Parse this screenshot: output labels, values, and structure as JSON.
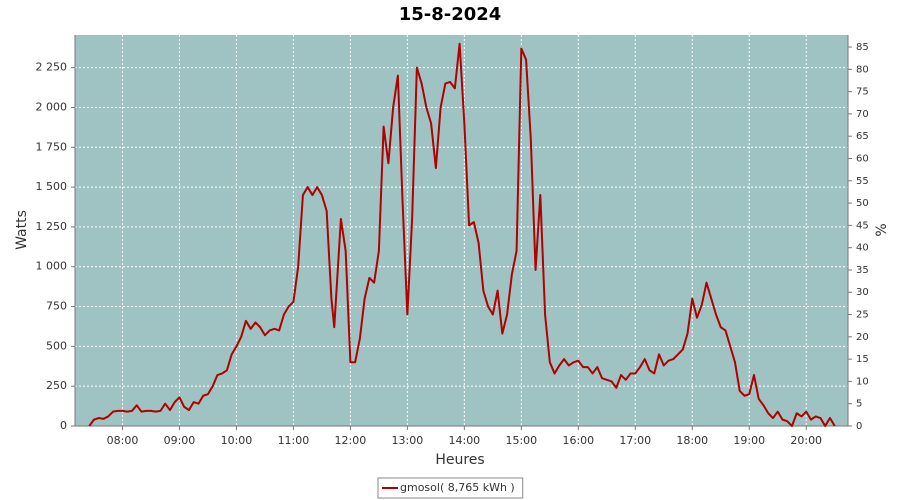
{
  "chart_data": {
    "type": "line",
    "title": "15-8-2024",
    "xlabel": "Heures",
    "ylabel": "Watts",
    "y2label": "%",
    "x": [
      "07:25",
      "07:30",
      "07:35",
      "07:40",
      "07:45",
      "07:50",
      "07:55",
      "08:00",
      "08:05",
      "08:10",
      "08:15",
      "08:20",
      "08:25",
      "08:30",
      "08:35",
      "08:40",
      "08:45",
      "08:50",
      "08:55",
      "09:00",
      "09:05",
      "09:10",
      "09:15",
      "09:20",
      "09:25",
      "09:30",
      "09:35",
      "09:40",
      "09:45",
      "09:50",
      "09:55",
      "10:00",
      "10:05",
      "10:10",
      "10:15",
      "10:20",
      "10:25",
      "10:30",
      "10:35",
      "10:40",
      "10:45",
      "10:50",
      "10:55",
      "11:00",
      "11:05",
      "11:10",
      "11:15",
      "11:20",
      "11:25",
      "11:30",
      "11:35",
      "11:40",
      "11:43",
      "11:50",
      "11:55",
      "12:00",
      "12:05",
      "12:10",
      "12:15",
      "12:20",
      "12:25",
      "12:30",
      "12:35",
      "12:40",
      "12:45",
      "12:50",
      "12:55",
      "13:00",
      "13:05",
      "13:10",
      "13:15",
      "13:20",
      "13:25",
      "13:30",
      "13:35",
      "13:40",
      "13:45",
      "13:50",
      "13:55",
      "14:00",
      "14:05",
      "14:10",
      "14:15",
      "14:20",
      "14:25",
      "14:30",
      "14:35",
      "14:40",
      "14:45",
      "14:50",
      "14:55",
      "15:00",
      "15:05",
      "15:10",
      "15:15",
      "15:20",
      "15:25",
      "15:30",
      "15:35",
      "15:40",
      "15:45",
      "15:50",
      "15:55",
      "16:00",
      "16:05",
      "16:10",
      "16:15",
      "16:20",
      "16:25",
      "16:30",
      "16:35",
      "16:40",
      "16:45",
      "16:50",
      "16:55",
      "17:00",
      "17:05",
      "17:10",
      "17:15",
      "17:20",
      "17:25",
      "17:30",
      "17:35",
      "17:40",
      "17:45",
      "17:50",
      "17:55",
      "18:00",
      "18:05",
      "18:10",
      "18:15",
      "18:20",
      "18:25",
      "18:30",
      "18:35",
      "18:40",
      "18:45",
      "18:50",
      "18:55",
      "19:00",
      "19:05",
      "19:10",
      "19:15",
      "19:20",
      "19:25",
      "19:30",
      "19:35",
      "19:40",
      "19:45",
      "19:50",
      "19:55",
      "20:00",
      "20:05",
      "20:10",
      "20:15",
      "20:20",
      "20:25",
      "20:30"
    ],
    "series": [
      {
        "name": "gmosol( 8,765 kWh )",
        "color": "#b00000",
        "values": [
          0,
          40,
          50,
          45,
          60,
          90,
          95,
          95,
          90,
          95,
          130,
          90,
          95,
          95,
          90,
          95,
          140,
          100,
          150,
          180,
          120,
          100,
          150,
          140,
          190,
          200,
          250,
          320,
          330,
          350,
          450,
          500,
          560,
          660,
          610,
          650,
          620,
          570,
          600,
          610,
          600,
          700,
          750,
          780,
          1000,
          1450,
          1500,
          1450,
          1500,
          1450,
          1350,
          800,
          620,
          1300,
          1100,
          400,
          400,
          550,
          800,
          930,
          900,
          1100,
          1880,
          1650,
          2000,
          2200,
          1400,
          700,
          1300,
          2250,
          2150,
          2000,
          1900,
          1620,
          2000,
          2150,
          2160,
          2120,
          2400,
          1900,
          1260,
          1280,
          1150,
          850,
          750,
          700,
          850,
          580,
          700,
          950,
          1100,
          2370,
          2300,
          1800,
          980,
          1450,
          700,
          400,
          330,
          380,
          420,
          380,
          400,
          410,
          370,
          370,
          330,
          370,
          300,
          290,
          280,
          240,
          320,
          290,
          330,
          330,
          370,
          420,
          350,
          330,
          450,
          380,
          410,
          420,
          450,
          480,
          580,
          800,
          680,
          760,
          900,
          800,
          700,
          620,
          600,
          500,
          400,
          220,
          190,
          200,
          320,
          170,
          130,
          80,
          50,
          90,
          40,
          30,
          0,
          80,
          60,
          90,
          40,
          60,
          50,
          0,
          50,
          0
        ]
      }
    ],
    "xlim": [
      "07:10",
      "20:44"
    ],
    "xticks": [
      "08:00",
      "09:00",
      "10:00",
      "11:00",
      "12:00",
      "13:00",
      "14:00",
      "15:00",
      "16:00",
      "17:00",
      "18:00",
      "19:00",
      "20:00"
    ],
    "ylim": [
      0,
      2455
    ],
    "yticks": [
      0,
      250,
      500,
      750,
      {
        "value": 1000,
        "label": "1 000"
      },
      {
        "value": 1250,
        "label": "1 250"
      },
      {
        "value": 1500,
        "label": "1 500"
      },
      {
        "value": 1750,
        "label": "1 750"
      },
      {
        "value": 2000,
        "label": "2 000"
      },
      {
        "value": 2250,
        "label": "2 250"
      }
    ],
    "y2lim": [
      0,
      87.7
    ],
    "y2ticks": [
      0,
      5,
      10,
      15,
      20,
      25,
      30,
      35,
      40,
      45,
      50,
      55,
      60,
      65,
      70,
      75,
      80,
      85
    ],
    "grid": true,
    "plot_background": "#9fc3c3",
    "legend": "bottom"
  }
}
